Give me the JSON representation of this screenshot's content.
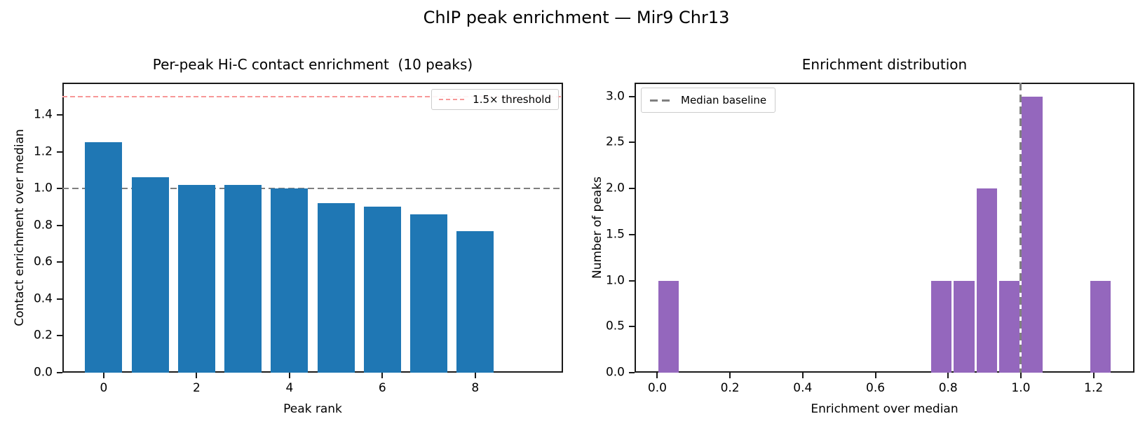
{
  "figure": {
    "suptitle": "ChIP peak enrichment — Mir9 Chr13"
  },
  "chart_data": [
    {
      "type": "bar",
      "title": "Per-peak Hi-C contact enrichment  (10 peaks)",
      "xlabel": "Peak rank",
      "ylabel": "Contact enrichment over median",
      "categories": [
        0,
        1,
        2,
        3,
        4,
        5,
        6,
        7,
        8,
        9
      ],
      "values": [
        1.25,
        1.06,
        1.02,
        1.02,
        1.0,
        0.92,
        0.9,
        0.86,
        0.77,
        0.0
      ],
      "bar_color": "#1f77b4",
      "bar_width": 0.8,
      "xlim": [
        -0.89,
        9.89
      ],
      "ylim": [
        0,
        1.575
      ],
      "grid": false,
      "xticks": [
        {
          "v": 0,
          "label": "0"
        },
        {
          "v": 2,
          "label": "2"
        },
        {
          "v": 4,
          "label": "4"
        },
        {
          "v": 6,
          "label": "6"
        },
        {
          "v": 8,
          "label": "8"
        }
      ],
      "yticks": [
        {
          "v": 0.0,
          "label": "0.0"
        },
        {
          "v": 0.2,
          "label": "0.2"
        },
        {
          "v": 0.4,
          "label": "0.4"
        },
        {
          "v": 0.6,
          "label": "0.6"
        },
        {
          "v": 0.8,
          "label": "0.8"
        },
        {
          "v": 1.0,
          "label": "1.0"
        },
        {
          "v": 1.2,
          "label": "1.2"
        },
        {
          "v": 1.4,
          "label": "1.4"
        }
      ],
      "hlines": [
        {
          "name": "threshold-line",
          "y": 1.5,
          "color": "#f79898",
          "dash": [
            7,
            4
          ],
          "lw": 2,
          "above_bars": true
        },
        {
          "name": "median-line",
          "y": 1.0,
          "color": "#7f7f7f",
          "dash": [
            9,
            5
          ],
          "lw": 2,
          "above_bars": false
        }
      ],
      "legend": {
        "position": "upper right",
        "entries": [
          {
            "label": "1.5× threshold",
            "color": "#f79898"
          }
        ]
      }
    },
    {
      "type": "histogram",
      "title": "Enrichment distribution",
      "xlabel": "Enrichment over median",
      "ylabel": "Number of peaks",
      "bin_width": 0.0625,
      "bins": [
        {
          "start": 0.0,
          "count": 1
        },
        {
          "start": 0.75,
          "count": 1
        },
        {
          "start": 0.8125,
          "count": 1
        },
        {
          "start": 0.875,
          "count": 2
        },
        {
          "start": 0.9375,
          "count": 1
        },
        {
          "start": 1.0,
          "count": 3
        },
        {
          "start": 1.1875,
          "count": 1
        }
      ],
      "bar_color": "#9467bd",
      "xlim": [
        -0.0625,
        1.3125
      ],
      "ylim": [
        0,
        3.15
      ],
      "grid": false,
      "xticks": [
        {
          "v": 0.0,
          "label": "0.0"
        },
        {
          "v": 0.2,
          "label": "0.2"
        },
        {
          "v": 0.4,
          "label": "0.4"
        },
        {
          "v": 0.6,
          "label": "0.6"
        },
        {
          "v": 0.8,
          "label": "0.8"
        },
        {
          "v": 1.0,
          "label": "1.0"
        },
        {
          "v": 1.2,
          "label": "1.2"
        }
      ],
      "yticks": [
        {
          "v": 0.0,
          "label": "0.0"
        },
        {
          "v": 0.5,
          "label": "0.5"
        },
        {
          "v": 1.0,
          "label": "1.0"
        },
        {
          "v": 1.5,
          "label": "1.5"
        },
        {
          "v": 2.0,
          "label": "2.0"
        },
        {
          "v": 2.5,
          "label": "2.5"
        },
        {
          "v": 3.0,
          "label": "3.0"
        }
      ],
      "vlines": [
        {
          "name": "median-baseline-line",
          "x": 1.0,
          "color": "#808080",
          "dash": [
            11,
            6
          ],
          "lw": 3
        }
      ],
      "legend": {
        "position": "upper left",
        "entries": [
          {
            "label": "Median baseline",
            "color": "#808080"
          }
        ]
      }
    }
  ]
}
